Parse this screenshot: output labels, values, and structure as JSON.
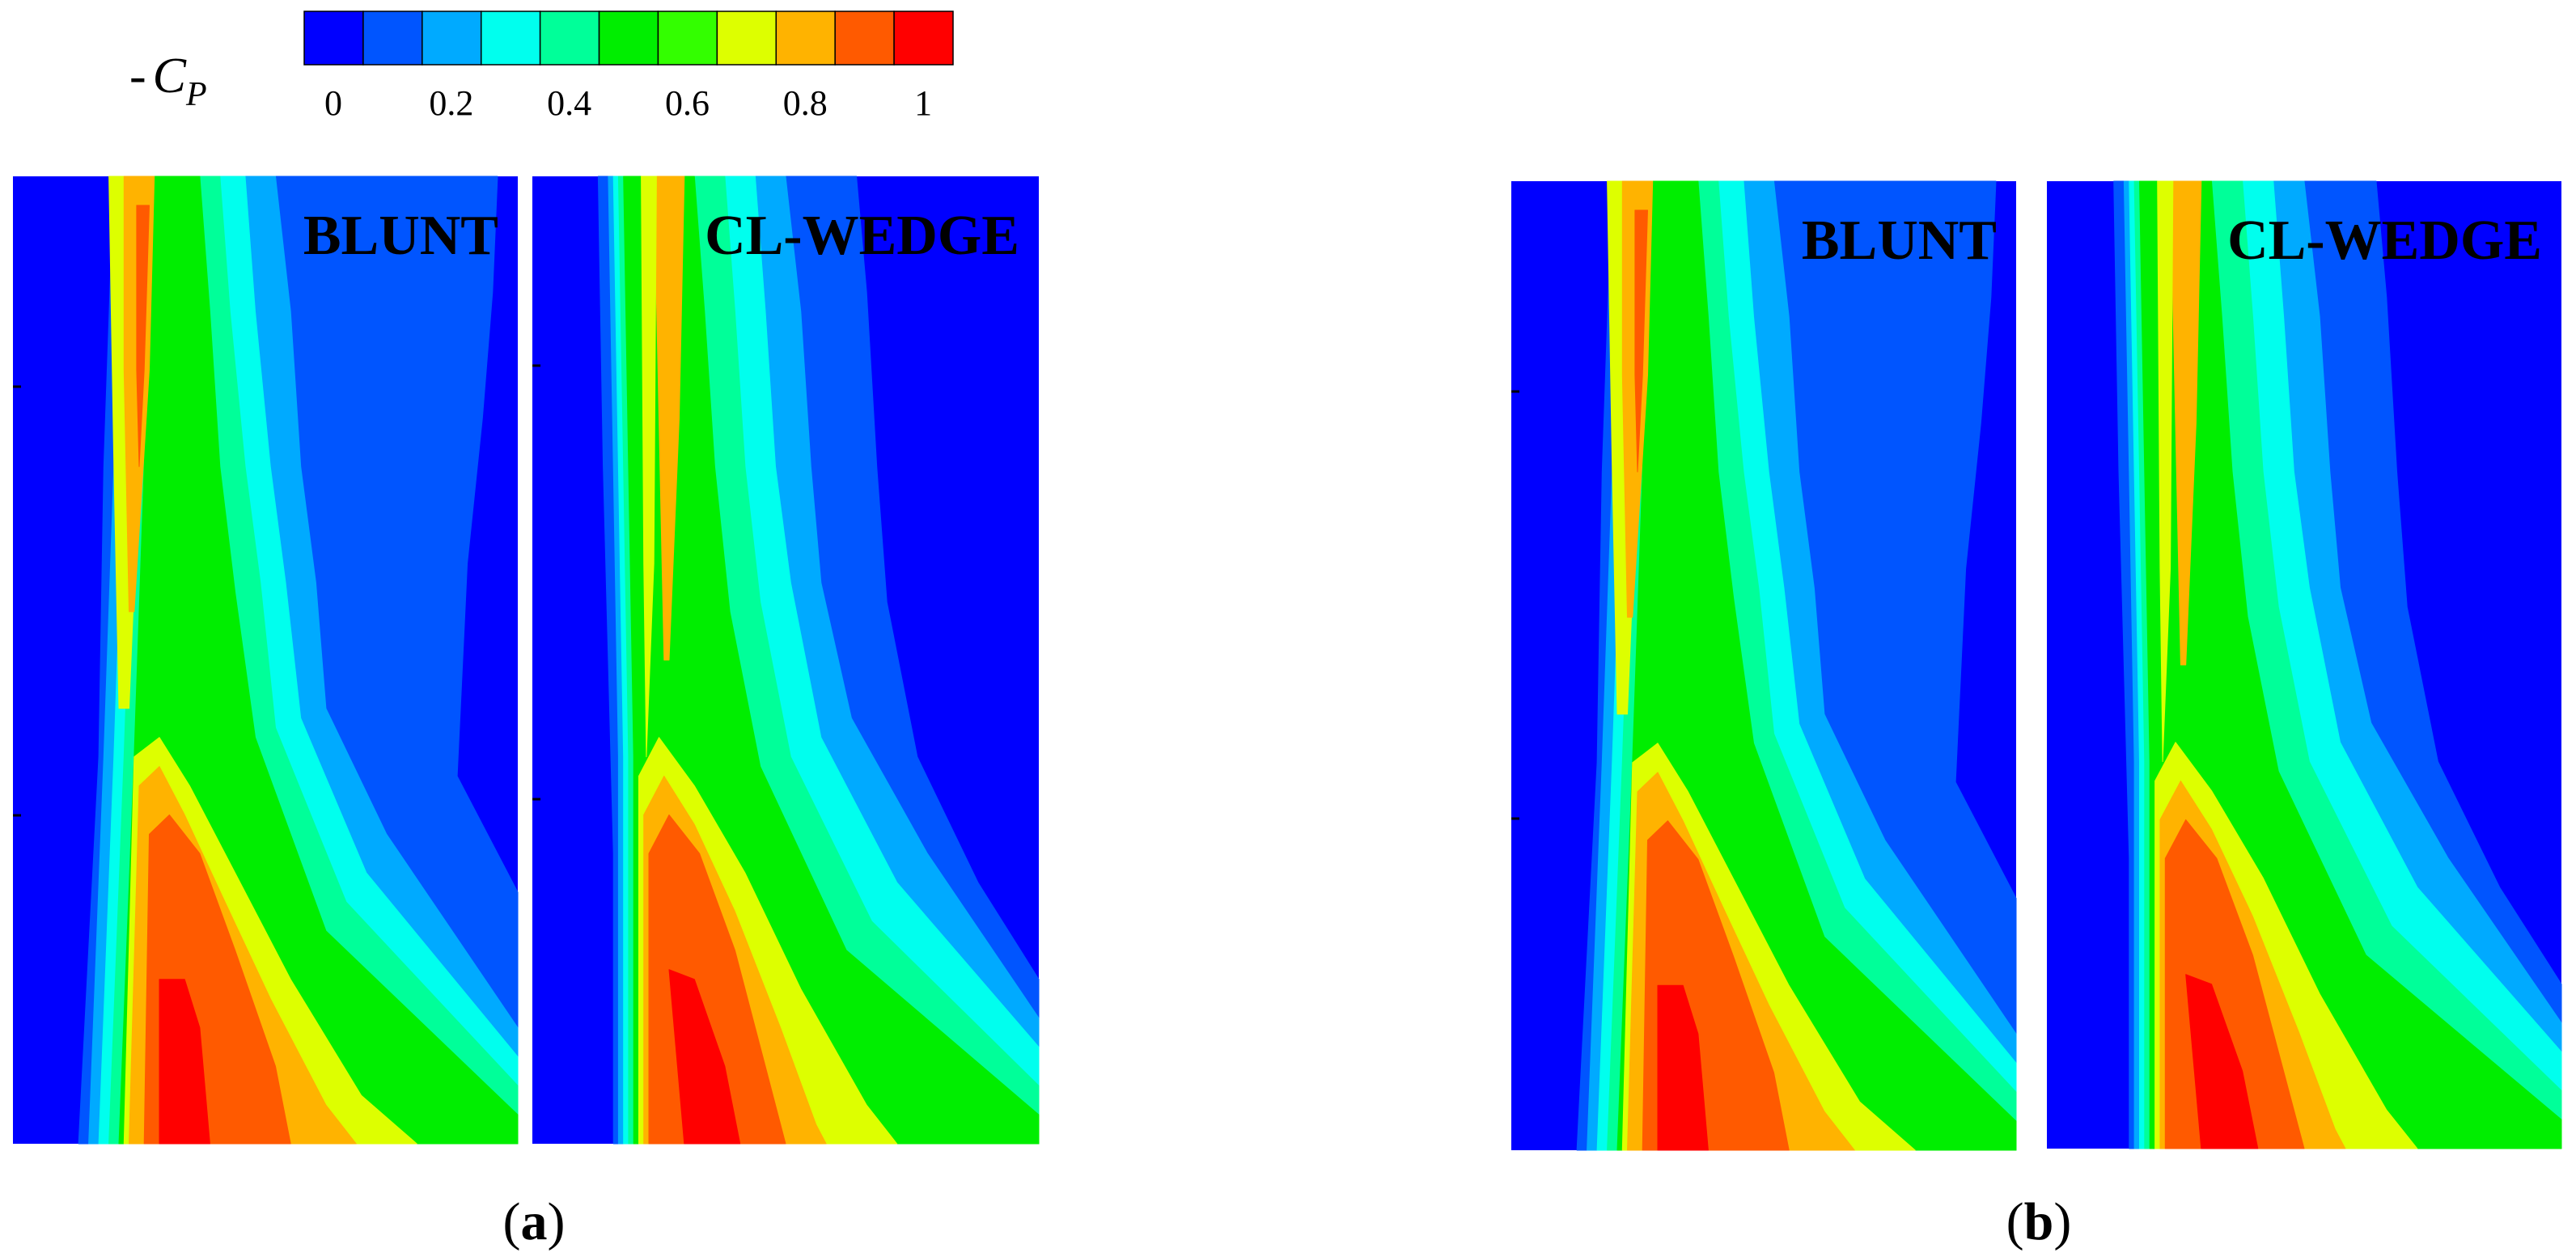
{
  "chart_data": {
    "type": "heatmap",
    "colorbar": {
      "label_prefix": "-",
      "label_var": "C",
      "label_sub": "P",
      "levels": [
        "#0000ff",
        "#0055ff",
        "#00aaff",
        "#00ffee",
        "#00ff99",
        "#00ee00",
        "#33ff00",
        "#ddff00",
        "#ffb300",
        "#ff5a00",
        "#ff0000"
      ],
      "tick_labels": [
        "0",
        "0.2",
        "0.4",
        "0.6",
        "0.8",
        "1"
      ],
      "range": [
        0,
        1.1
      ]
    },
    "panels": [
      {
        "label_open": "(",
        "label": "a",
        "label_close": ")",
        "plots": [
          {
            "title": "BLUNT"
          },
          {
            "title": "CL-WEDGE"
          }
        ]
      },
      {
        "label_open": "(",
        "label": "b",
        "label_close": ")",
        "plots": [
          {
            "title": "BLUNT"
          },
          {
            "title": "CL-WEDGE"
          }
        ]
      }
    ]
  }
}
